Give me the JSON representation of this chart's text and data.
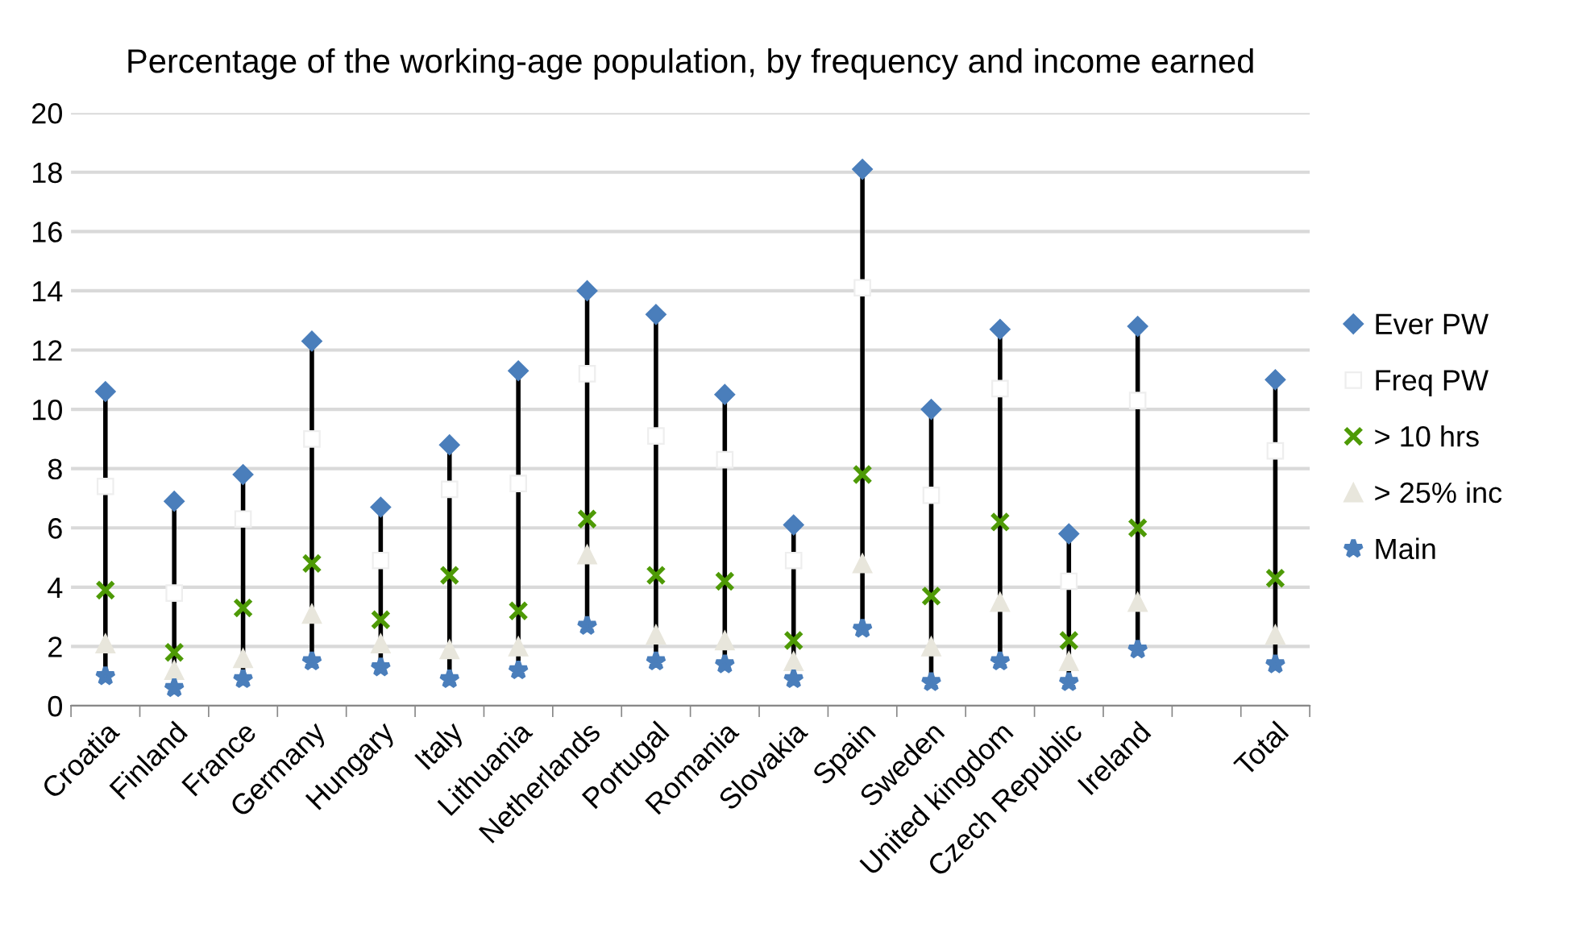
{
  "chart_data": {
    "type": "scatter",
    "title": "Percentage of the working-age population, by frequency and income earned",
    "categories": [
      "Croatia",
      "Finland",
      "France",
      "Germany",
      "Hungary",
      "Italy",
      "Lithuania",
      "Netherlands",
      "Portugal",
      "Romania",
      "Slovakia",
      "Spain",
      "Sweden",
      "United kingdom",
      "Czech Republic",
      "Ireland",
      null,
      "Total"
    ],
    "series": [
      {
        "name": "Ever PW",
        "color": "#4a7ebb",
        "marker": "diamond",
        "values": [
          10.6,
          6.9,
          7.8,
          12.3,
          6.7,
          8.8,
          11.3,
          14.0,
          13.2,
          10.5,
          6.1,
          18.1,
          10.0,
          12.7,
          5.8,
          12.8,
          null,
          11.0
        ]
      },
      {
        "name": "Freq PW",
        "color": "#ffffff",
        "marker": "square",
        "values": [
          7.4,
          3.8,
          6.3,
          9.0,
          4.9,
          7.3,
          7.5,
          11.2,
          9.1,
          8.3,
          4.9,
          14.1,
          7.1,
          10.7,
          4.2,
          10.3,
          null,
          8.6
        ]
      },
      {
        "name": "> 10 hrs",
        "color": "#4e9a06",
        "marker": "cross",
        "values": [
          3.9,
          1.8,
          3.3,
          4.8,
          2.9,
          4.4,
          3.2,
          6.3,
          4.4,
          4.2,
          2.2,
          7.8,
          3.7,
          6.2,
          2.2,
          6.0,
          null,
          4.3
        ]
      },
      {
        "name": "> 25% inc",
        "color": "#e8e6dc",
        "marker": "triangle",
        "values": [
          2.1,
          1.2,
          1.6,
          3.1,
          2.1,
          1.9,
          2.0,
          5.1,
          2.4,
          2.2,
          1.5,
          4.8,
          2.0,
          3.5,
          1.5,
          3.5,
          null,
          2.4
        ]
      },
      {
        "name": "Main",
        "color": "#4a7ebb",
        "marker": "star",
        "values": [
          1.0,
          0.6,
          0.9,
          1.5,
          1.3,
          0.9,
          1.2,
          2.7,
          1.5,
          1.4,
          0.9,
          2.6,
          0.8,
          1.5,
          0.8,
          1.9,
          null,
          1.4
        ]
      }
    ],
    "ylim": [
      0,
      20
    ],
    "yticks": [
      0,
      2,
      4,
      6,
      8,
      10,
      12,
      14,
      16,
      18,
      20
    ],
    "grid": "y",
    "legend": "right"
  }
}
